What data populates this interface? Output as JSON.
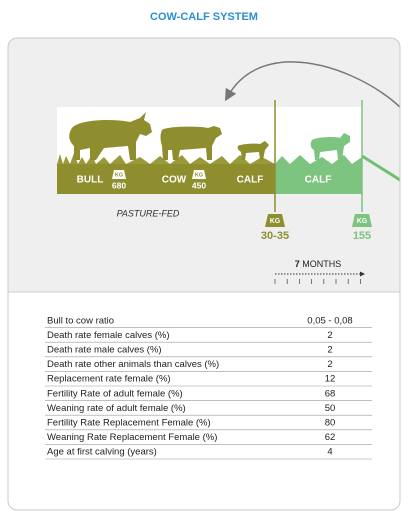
{
  "title": "COW-CALF SYSTEM",
  "diagram": {
    "stages": [
      {
        "label": "BULL",
        "unit": "KG",
        "weight": 680
      },
      {
        "label": "COW",
        "unit": "KG",
        "weight": 450
      },
      {
        "label": "CALF"
      },
      {
        "label": "CALF"
      }
    ],
    "birth_weight": {
      "unit": "KG",
      "weight": "30-35"
    },
    "weaning_weight": {
      "unit": "KG",
      "weight": 155
    },
    "feeding": "PASTURE-FED",
    "duration": {
      "value": 7,
      "unit": "MONTHS"
    }
  },
  "table": {
    "rows": [
      [
        "Bull to cow ratio",
        "0,05 - 0,08"
      ],
      [
        "Death rate female calves (%)",
        2
      ],
      [
        "Death rate male calves (%)",
        2
      ],
      [
        "Death rate other animals than calves (%)",
        2
      ],
      [
        "Replacement rate female (%)",
        12
      ],
      [
        "Fertility Rate of adult female (%)",
        68
      ],
      [
        "Weaning rate of adult female (%)",
        50
      ],
      [
        "Fertility Rate Replacement Female (%)",
        80
      ],
      [
        "Weaning Rate Replacement Female (%)",
        62
      ],
      [
        "Age at first calving (years)",
        4
      ]
    ]
  }
}
